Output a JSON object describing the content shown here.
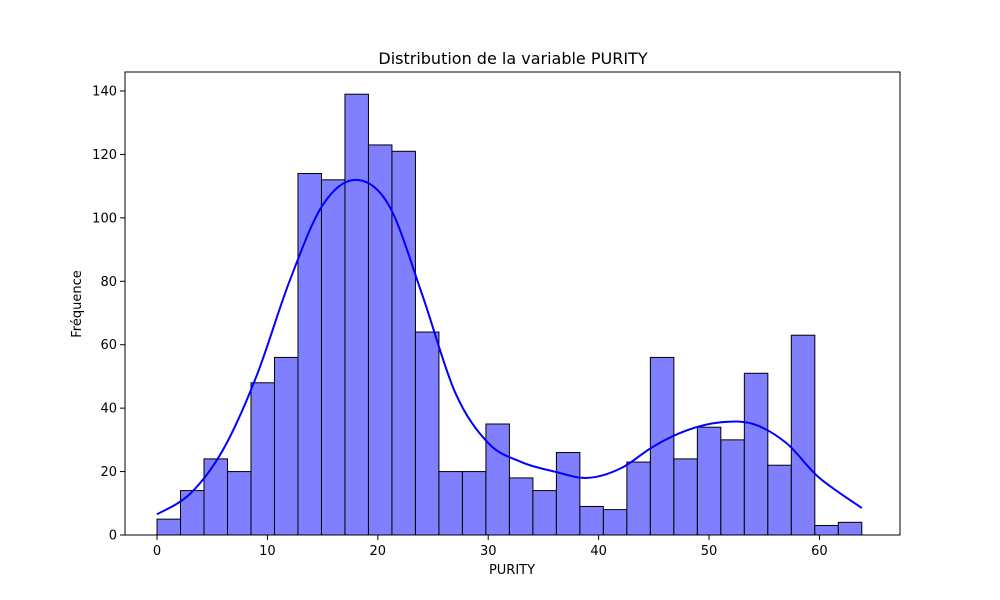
{
  "chart_data": {
    "type": "bar",
    "title": "Distribution de la variable PURITY",
    "xlabel": "PURITY",
    "ylabel": "Fréquence",
    "xlim": [
      -2.9,
      67.3
    ],
    "ylim": [
      0,
      146
    ],
    "x_ticks": [
      0,
      10,
      20,
      30,
      40,
      50,
      60
    ],
    "y_ticks": [
      0,
      20,
      40,
      60,
      80,
      100,
      120,
      140
    ],
    "bin_edges": [
      0.0,
      2.128,
      4.256,
      6.384,
      8.512,
      10.64,
      12.768,
      14.896,
      17.024,
      19.152,
      21.28,
      23.408,
      25.536,
      27.664,
      29.792,
      31.92,
      34.048,
      36.176,
      38.304,
      40.432,
      42.56,
      44.688,
      46.816,
      48.944,
      51.072,
      53.2,
      55.328,
      57.456,
      59.584,
      61.712,
      63.84
    ],
    "counts": [
      5,
      14,
      24,
      20,
      48,
      56,
      114,
      112,
      139,
      123,
      121,
      64,
      20,
      20,
      35,
      18,
      14,
      26,
      9,
      8,
      23,
      56,
      24,
      34,
      30,
      51,
      22,
      63,
      3,
      4
    ],
    "kde": {
      "x": [
        0,
        3,
        6,
        9,
        12,
        15,
        18,
        21,
        24,
        27,
        30,
        33,
        36,
        39,
        42,
        45,
        48,
        51,
        54,
        57,
        60,
        63.84
      ],
      "y": [
        6.5,
        13,
        27,
        50,
        80,
        104,
        112,
        104,
        76,
        45,
        29,
        23,
        20,
        18,
        21,
        28,
        33,
        35.5,
        35,
        29,
        18,
        8.5
      ]
    },
    "bar_color": "#8080ff",
    "bar_edge_color": "#000000",
    "kde_color": "#0000ff",
    "grid": false,
    "legend": false
  }
}
